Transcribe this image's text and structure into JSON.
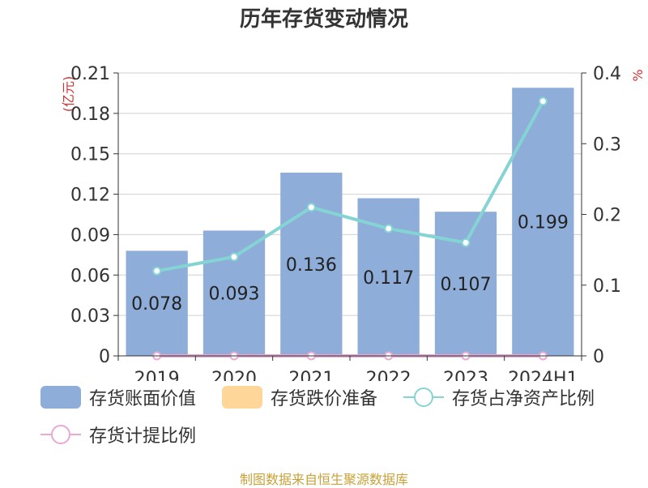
{
  "chart_data": {
    "type": "bar",
    "title": "历年存货变动情况",
    "categories": [
      "2019",
      "2020",
      "2021",
      "2022",
      "2023",
      "2024H1"
    ],
    "ylabel_left": "(亿元)",
    "ylabel_right": "%",
    "ylim_left": [
      0,
      0.21
    ],
    "yticks_left": [
      "0",
      "0.03",
      "0.06",
      "0.09",
      "0.12",
      "0.15",
      "0.18",
      "0.21"
    ],
    "ylim_right": [
      0,
      0.4
    ],
    "yticks_right": [
      "0",
      "0.1",
      "0.2",
      "0.3",
      "0.4"
    ],
    "grid": true,
    "legend_position": "bottom",
    "series": [
      {
        "name": "存货账面价值",
        "kind": "bar",
        "axis": "left",
        "color": "#8eadd9",
        "values": [
          0.078,
          0.093,
          0.136,
          0.117,
          0.107,
          0.199
        ],
        "labels": [
          "0.078",
          "0.093",
          "0.136",
          "0.117",
          "0.107",
          "0.199"
        ]
      },
      {
        "name": "存货跌价准备",
        "kind": "bar",
        "axis": "left",
        "color": "#ffd699",
        "values": [
          0,
          0,
          0,
          0,
          0,
          0
        ]
      },
      {
        "name": "存货占净资产比例",
        "kind": "line",
        "axis": "right",
        "color": "#85d4d4",
        "values": [
          0.12,
          0.14,
          0.21,
          0.18,
          0.16,
          0.36
        ]
      },
      {
        "name": "存货计提比例",
        "kind": "line",
        "axis": "right",
        "color": "#e8a9d2",
        "values": [
          0,
          0,
          0,
          0,
          0,
          0
        ]
      }
    ]
  },
  "source": "制图数据来自恒生聚源数据库"
}
